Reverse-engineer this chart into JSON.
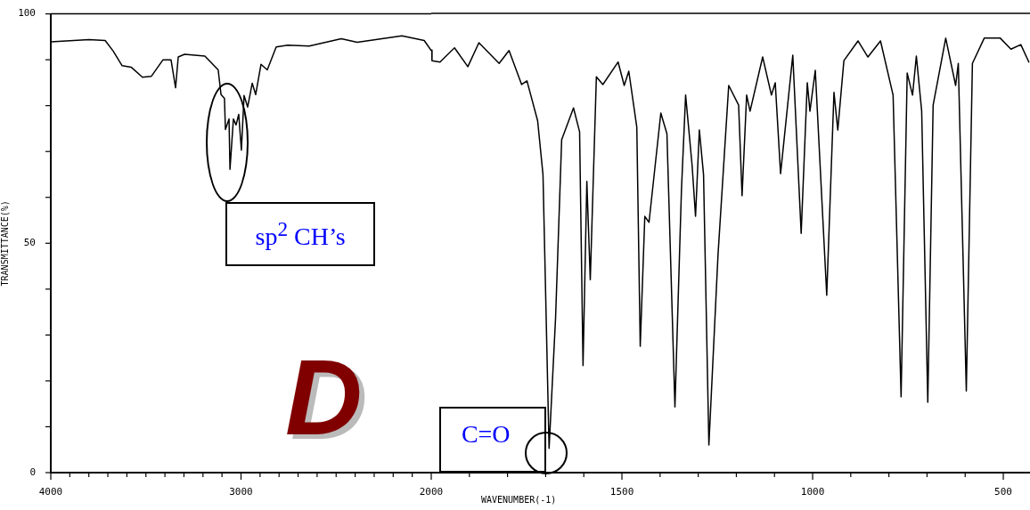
{
  "chart_data": [
    {
      "type": "line",
      "ylabel": "TRANSMITTANCE(%)",
      "x": [
        4000,
        3799,
        3714,
        3672,
        3625,
        3578,
        3518,
        3471,
        3410,
        3368,
        3344,
        3330,
        3297,
        3190,
        3120,
        3105,
        3087,
        3082,
        3063,
        3058,
        3040,
        3026,
        3012,
        2998,
        2984,
        2965,
        2941,
        2923,
        2895,
        2862,
        2815,
        2754,
        2642,
        2473,
        2389,
        2154,
        2037,
        2000
      ],
      "series": [
        {
          "color": "#000000",
          "values": [
            93.9,
            94.4,
            94.2,
            91.9,
            88.7,
            88.4,
            86.2,
            86.4,
            90.0,
            90.0,
            83.9,
            90.6,
            91.2,
            90.8,
            87.8,
            82.4,
            81.6,
            74.8,
            77.1,
            66.1,
            77.1,
            75.8,
            78.1,
            70.3,
            82.2,
            79.7,
            84.9,
            82.4,
            89.0,
            87.8,
            92.8,
            93.2,
            93.0,
            94.6,
            93.8,
            95.2,
            94.2,
            92.0
          ]
        }
      ],
      "xlim": [
        4000,
        2000
      ],
      "xticks": [
        4000,
        {
          "value": 3900,
          "label": null
        },
        {
          "value": 3800,
          "label": null
        },
        {
          "value": 3700,
          "label": null
        },
        {
          "value": 3600,
          "label": null
        },
        {
          "value": 3500,
          "label": null
        },
        {
          "value": 3400,
          "label": null
        },
        {
          "value": 3300,
          "label": null
        },
        {
          "value": 3200,
          "label": null
        },
        {
          "value": 3100,
          "label": null
        },
        3000,
        {
          "value": 2900,
          "label": null
        },
        {
          "value": 2800,
          "label": null
        },
        {
          "value": 2700,
          "label": null
        },
        {
          "value": 2600,
          "label": null
        },
        {
          "value": 2500,
          "label": null
        },
        {
          "value": 2400,
          "label": null
        },
        {
          "value": 2300,
          "label": null
        },
        {
          "value": 2200,
          "label": null
        },
        {
          "value": 2100,
          "label": null
        }
      ],
      "ylim": [
        0,
        100
      ],
      "yticks": [
        0,
        {
          "value": 10,
          "label": null
        },
        {
          "value": 20,
          "label": null
        },
        {
          "value": 30,
          "label": null
        },
        {
          "value": 40,
          "label": null
        },
        50,
        {
          "value": 60,
          "label": null
        },
        {
          "value": 70,
          "label": null
        },
        {
          "value": 80,
          "label": null
        },
        {
          "value": 90,
          "label": null
        },
        100
      ],
      "grid": false,
      "legend": false,
      "marker": "none",
      "line_style": "solid",
      "annotations": [
        {
          "text": "sp$^{2}$ CH’s",
          "x": 3058,
          "y": 66.1
        },
        "D"
      ]
    },
    {
      "type": "line",
      "xlabel": "WAVENUMBER(-1)",
      "x": [
        2000,
        1998,
        1977,
        1939,
        1904,
        1875,
        1822,
        1796,
        1763,
        1749,
        1721,
        1707,
        1691,
        1674,
        1658,
        1627,
        1611,
        1602,
        1592,
        1583,
        1567,
        1550,
        1510,
        1494,
        1482,
        1461,
        1452,
        1440,
        1429,
        1398,
        1382,
        1361,
        1344,
        1333,
        1316,
        1307,
        1297,
        1286,
        1272,
        1248,
        1220,
        1194,
        1185,
        1173,
        1164,
        1131,
        1108,
        1098,
        1084,
        1052,
        1030,
        1014,
        1007,
        993,
        963,
        944,
        934,
        918,
        881,
        855,
        822,
        789,
        768,
        752,
        738,
        728,
        714,
        698,
        684,
        651,
        625,
        618,
        597,
        581,
        550,
        508,
        480,
        454,
        433
      ],
      "series": [
        {
          "color": "#000000",
          "values": [
            92.0,
            89.7,
            89.4,
            92.5,
            88.4,
            93.6,
            89.1,
            91.9,
            84.5,
            85.3,
            76.6,
            64.9,
            5.3,
            33.7,
            72.5,
            79.4,
            74.2,
            23.3,
            63.4,
            42.0,
            86.2,
            84.5,
            89.4,
            84.3,
            87.4,
            75.2,
            27.5,
            55.8,
            54.5,
            78.3,
            73.8,
            14.3,
            61.4,
            82.2,
            66.9,
            55.8,
            74.6,
            64.9,
            6.0,
            47.5,
            84.3,
            80.0,
            60.3,
            82.2,
            78.7,
            90.5,
            82.2,
            84.9,
            65.1,
            90.9,
            52.1,
            84.9,
            78.7,
            87.6,
            38.6,
            82.8,
            74.6,
            89.7,
            94.0,
            90.5,
            94.0,
            82.2,
            16.5,
            87.0,
            82.2,
            90.7,
            78.7,
            15.3,
            80.0,
            94.6,
            84.3,
            89.1,
            17.8,
            89.1,
            94.6,
            94.6,
            92.2,
            93.2,
            89.4
          ]
        }
      ],
      "xlim": [
        2000,
        430
      ],
      "xticks": [
        2000,
        {
          "value": 1900,
          "label": null
        },
        {
          "value": 1800,
          "label": null
        },
        {
          "value": 1700,
          "label": null
        },
        {
          "value": 1600,
          "label": null
        },
        1500,
        {
          "value": 1400,
          "label": null
        },
        {
          "value": 1300,
          "label": null
        },
        {
          "value": 1200,
          "label": null
        },
        {
          "value": 1100,
          "label": null
        },
        1000,
        {
          "value": 900,
          "label": null
        },
        {
          "value": 800,
          "label": null
        },
        {
          "value": 700,
          "label": null
        },
        {
          "value": 600,
          "label": null
        },
        500
      ],
      "ylim": [
        0,
        100
      ],
      "tick_labels": "x",
      "grid": false,
      "legend": false,
      "marker": "none",
      "line_style": "solid",
      "annotations": [
        {
          "text": "C=O",
          "x": 1691,
          "y": 5.3
        }
      ]
    }
  ]
}
